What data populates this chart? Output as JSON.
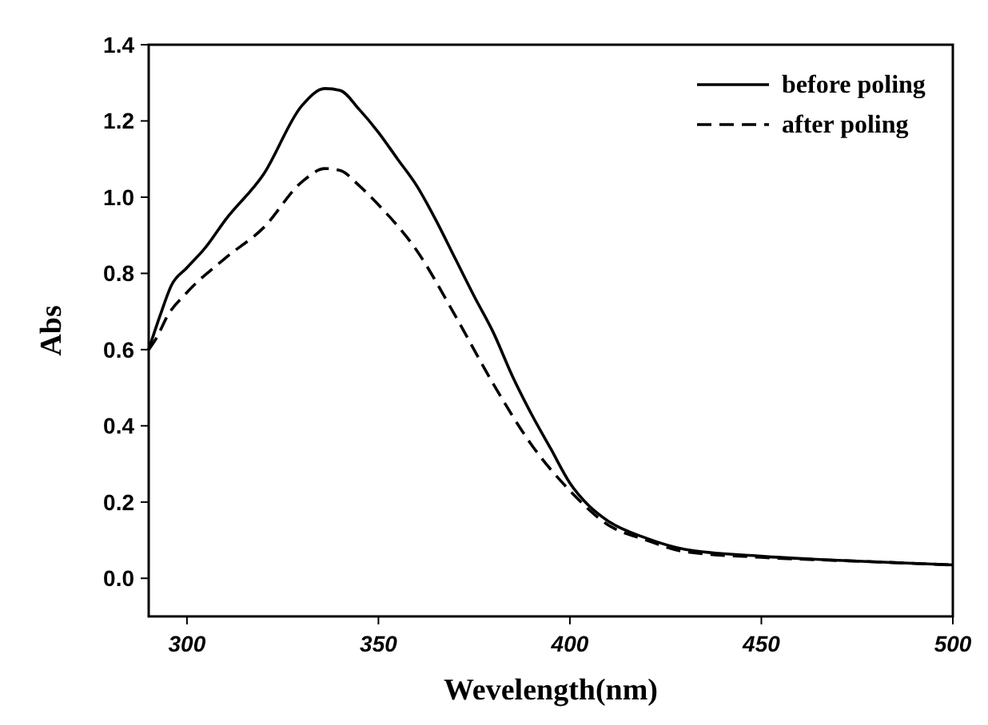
{
  "chart_data": {
    "type": "line",
    "xlabel": "Wevelength(nm)",
    "ylabel": "Abs",
    "xlim": [
      290,
      500
    ],
    "xticks": [
      300,
      350,
      400,
      450,
      500
    ],
    "ylim": [
      -0.1,
      1.4
    ],
    "yticks": [
      {
        "value": 0,
        "label": "0.0"
      },
      0.2,
      0.4,
      0.6,
      0.8,
      {
        "value": 1,
        "label": "1.0"
      },
      1.2,
      1.4
    ],
    "grid": false,
    "legend": "top right",
    "marker": "none",
    "series": [
      {
        "name": "before poling",
        "color": "#000000",
        "line_style": "solid",
        "x": [
          290,
          293,
          296,
          300,
          305,
          310,
          320,
          330,
          336,
          340,
          345,
          350,
          355,
          360,
          365,
          370,
          375,
          380,
          385,
          390,
          395,
          400,
          405,
          410,
          420,
          430,
          450,
          475,
          500
        ],
        "values": [
          0.6,
          0.69,
          0.77,
          0.815,
          0.87,
          0.94,
          1.06,
          1.24,
          1.285,
          1.28,
          1.23,
          1.17,
          1.1,
          1.03,
          0.94,
          0.84,
          0.74,
          0.645,
          0.53,
          0.43,
          0.34,
          0.25,
          0.19,
          0.15,
          0.105,
          0.076,
          0.058,
          0.045,
          0.035
        ]
      },
      {
        "name": "after poling",
        "color": "#000000",
        "line_style": "dashed",
        "x": [
          290,
          292,
          295,
          300,
          310,
          320,
          330,
          336,
          340,
          345,
          350,
          360,
          370,
          380,
          390,
          400,
          410,
          420,
          430,
          450,
          475,
          500
        ],
        "values": [
          0.6,
          0.63,
          0.69,
          0.75,
          0.84,
          0.92,
          1.04,
          1.075,
          1.07,
          1.03,
          0.98,
          0.86,
          0.69,
          0.51,
          0.35,
          0.23,
          0.14,
          0.1,
          0.07,
          0.055,
          0.045,
          0.035
        ]
      }
    ]
  }
}
